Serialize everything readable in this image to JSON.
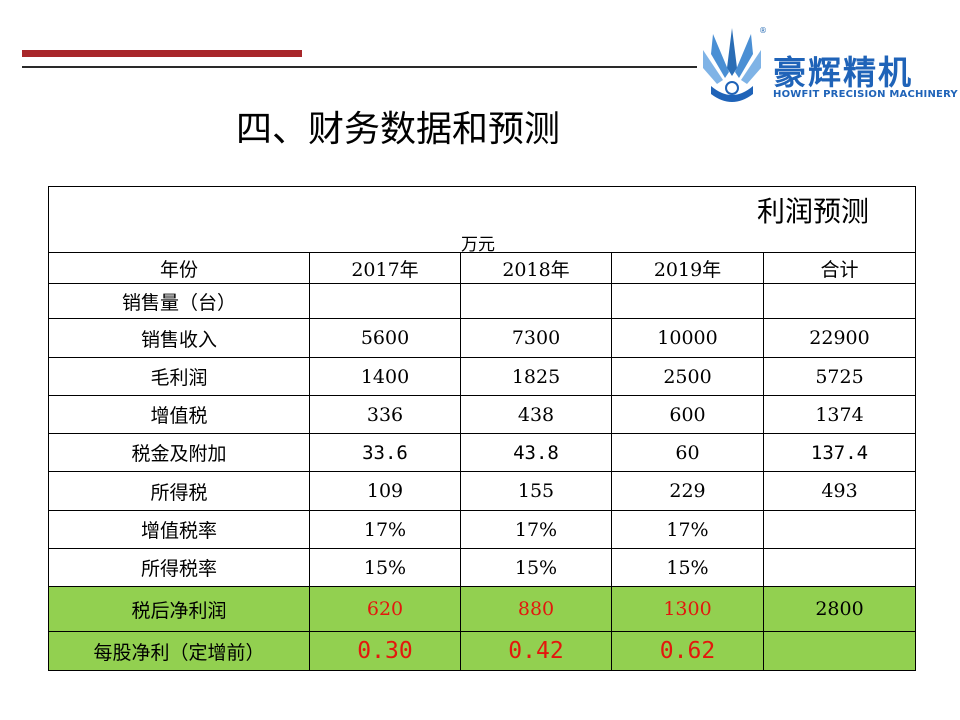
{
  "header": {
    "logo_cn": "豪辉精机",
    "logo_en": "HOWFIT PRECISION MACHINERY",
    "logo_reg": "®",
    "brand_color": "#1f63b8",
    "accent_color": "#a8272a"
  },
  "page_title": "四、财务数据和预测",
  "table": {
    "caption": "利润预测",
    "unit": "万元",
    "highlight_color": "#92d050",
    "highlight_text_color": "#e3170d",
    "columns": [
      "年份",
      "2017年",
      "2018年",
      "2019年",
      "合计"
    ],
    "rows": [
      {
        "label": "销售量（台）",
        "cells": [
          "",
          "",
          "",
          ""
        ]
      },
      {
        "label": "销售收入",
        "cells": [
          "5600",
          "7300",
          "10000",
          "22900"
        ]
      },
      {
        "label": "毛利润",
        "cells": [
          "1400",
          "1825",
          "2500",
          "5725"
        ]
      },
      {
        "label": "增值税",
        "cells": [
          "336",
          "438",
          "600",
          "1374"
        ]
      },
      {
        "label": "税金及附加",
        "cells": [
          "33.6",
          "43.8",
          "60",
          "137.4"
        ]
      },
      {
        "label": "所得税",
        "cells": [
          "109",
          "155",
          "229",
          "493"
        ]
      },
      {
        "label": "增值税率",
        "cells": [
          "17%",
          "17%",
          "17%",
          ""
        ]
      },
      {
        "label": "所得税率",
        "cells": [
          "15%",
          "15%",
          "15%",
          ""
        ]
      },
      {
        "label": "税后净利润",
        "cells": [
          "620",
          "880",
          "1300",
          "2800"
        ]
      },
      {
        "label": "每股净利（定增前）",
        "cells": [
          "0.30",
          "0.42",
          "0.62",
          ""
        ]
      }
    ]
  }
}
